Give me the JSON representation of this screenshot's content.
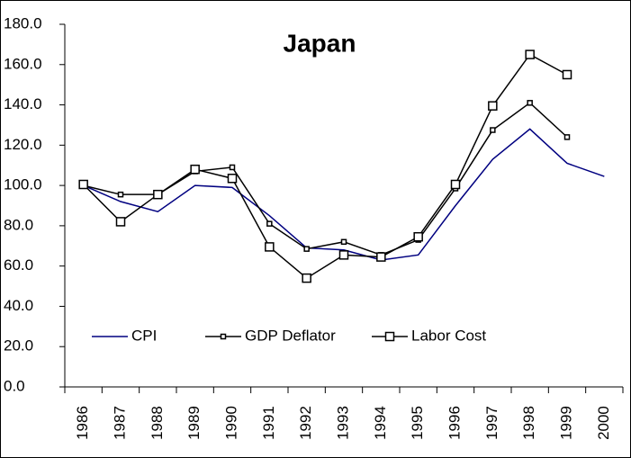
{
  "chart_data": {
    "type": "line",
    "title": "Japan",
    "categories": [
      "1986",
      "1987",
      "1988",
      "1989",
      "1990",
      "1991",
      "1992",
      "1993",
      "1994",
      "1995",
      "1996",
      "1997",
      "1998",
      "1999",
      "2000"
    ],
    "series": [
      {
        "name": "CPI",
        "color": "#000080",
        "marker": "none",
        "values": [
          100,
          92,
          87,
          100,
          99,
          85,
          69,
          68,
          63,
          65.5,
          90,
          113,
          128,
          111,
          104.5
        ]
      },
      {
        "name": "GDP Deflator",
        "color": "#000000",
        "marker": "small-square",
        "values": [
          100,
          95.5,
          95.5,
          107,
          109,
          81,
          68.5,
          72,
          65.5,
          73,
          98.5,
          127.5,
          141,
          124,
          null
        ]
      },
      {
        "name": "Labor Cost",
        "color": "#000000",
        "marker": "square",
        "values": [
          100.5,
          82,
          95.5,
          108,
          103.5,
          69.5,
          54,
          65.5,
          64.5,
          74.5,
          100.5,
          139.5,
          165,
          155,
          null
        ]
      }
    ],
    "ylim": [
      0,
      180
    ],
    "yticks": [
      {
        "value": 0,
        "label": "0.0"
      },
      {
        "value": 20,
        "label": "20.0"
      },
      {
        "value": 40,
        "label": "40.0"
      },
      {
        "value": 60,
        "label": "60.0"
      },
      {
        "value": 80,
        "label": "80.0"
      },
      {
        "value": 100,
        "label": "100.0"
      },
      {
        "value": 120,
        "label": "120.0"
      },
      {
        "value": 140,
        "label": "140.0"
      },
      {
        "value": 160,
        "label": "160.0"
      },
      {
        "value": 180,
        "label": "180.0"
      }
    ],
    "grid": false,
    "legend": "lower-left"
  }
}
